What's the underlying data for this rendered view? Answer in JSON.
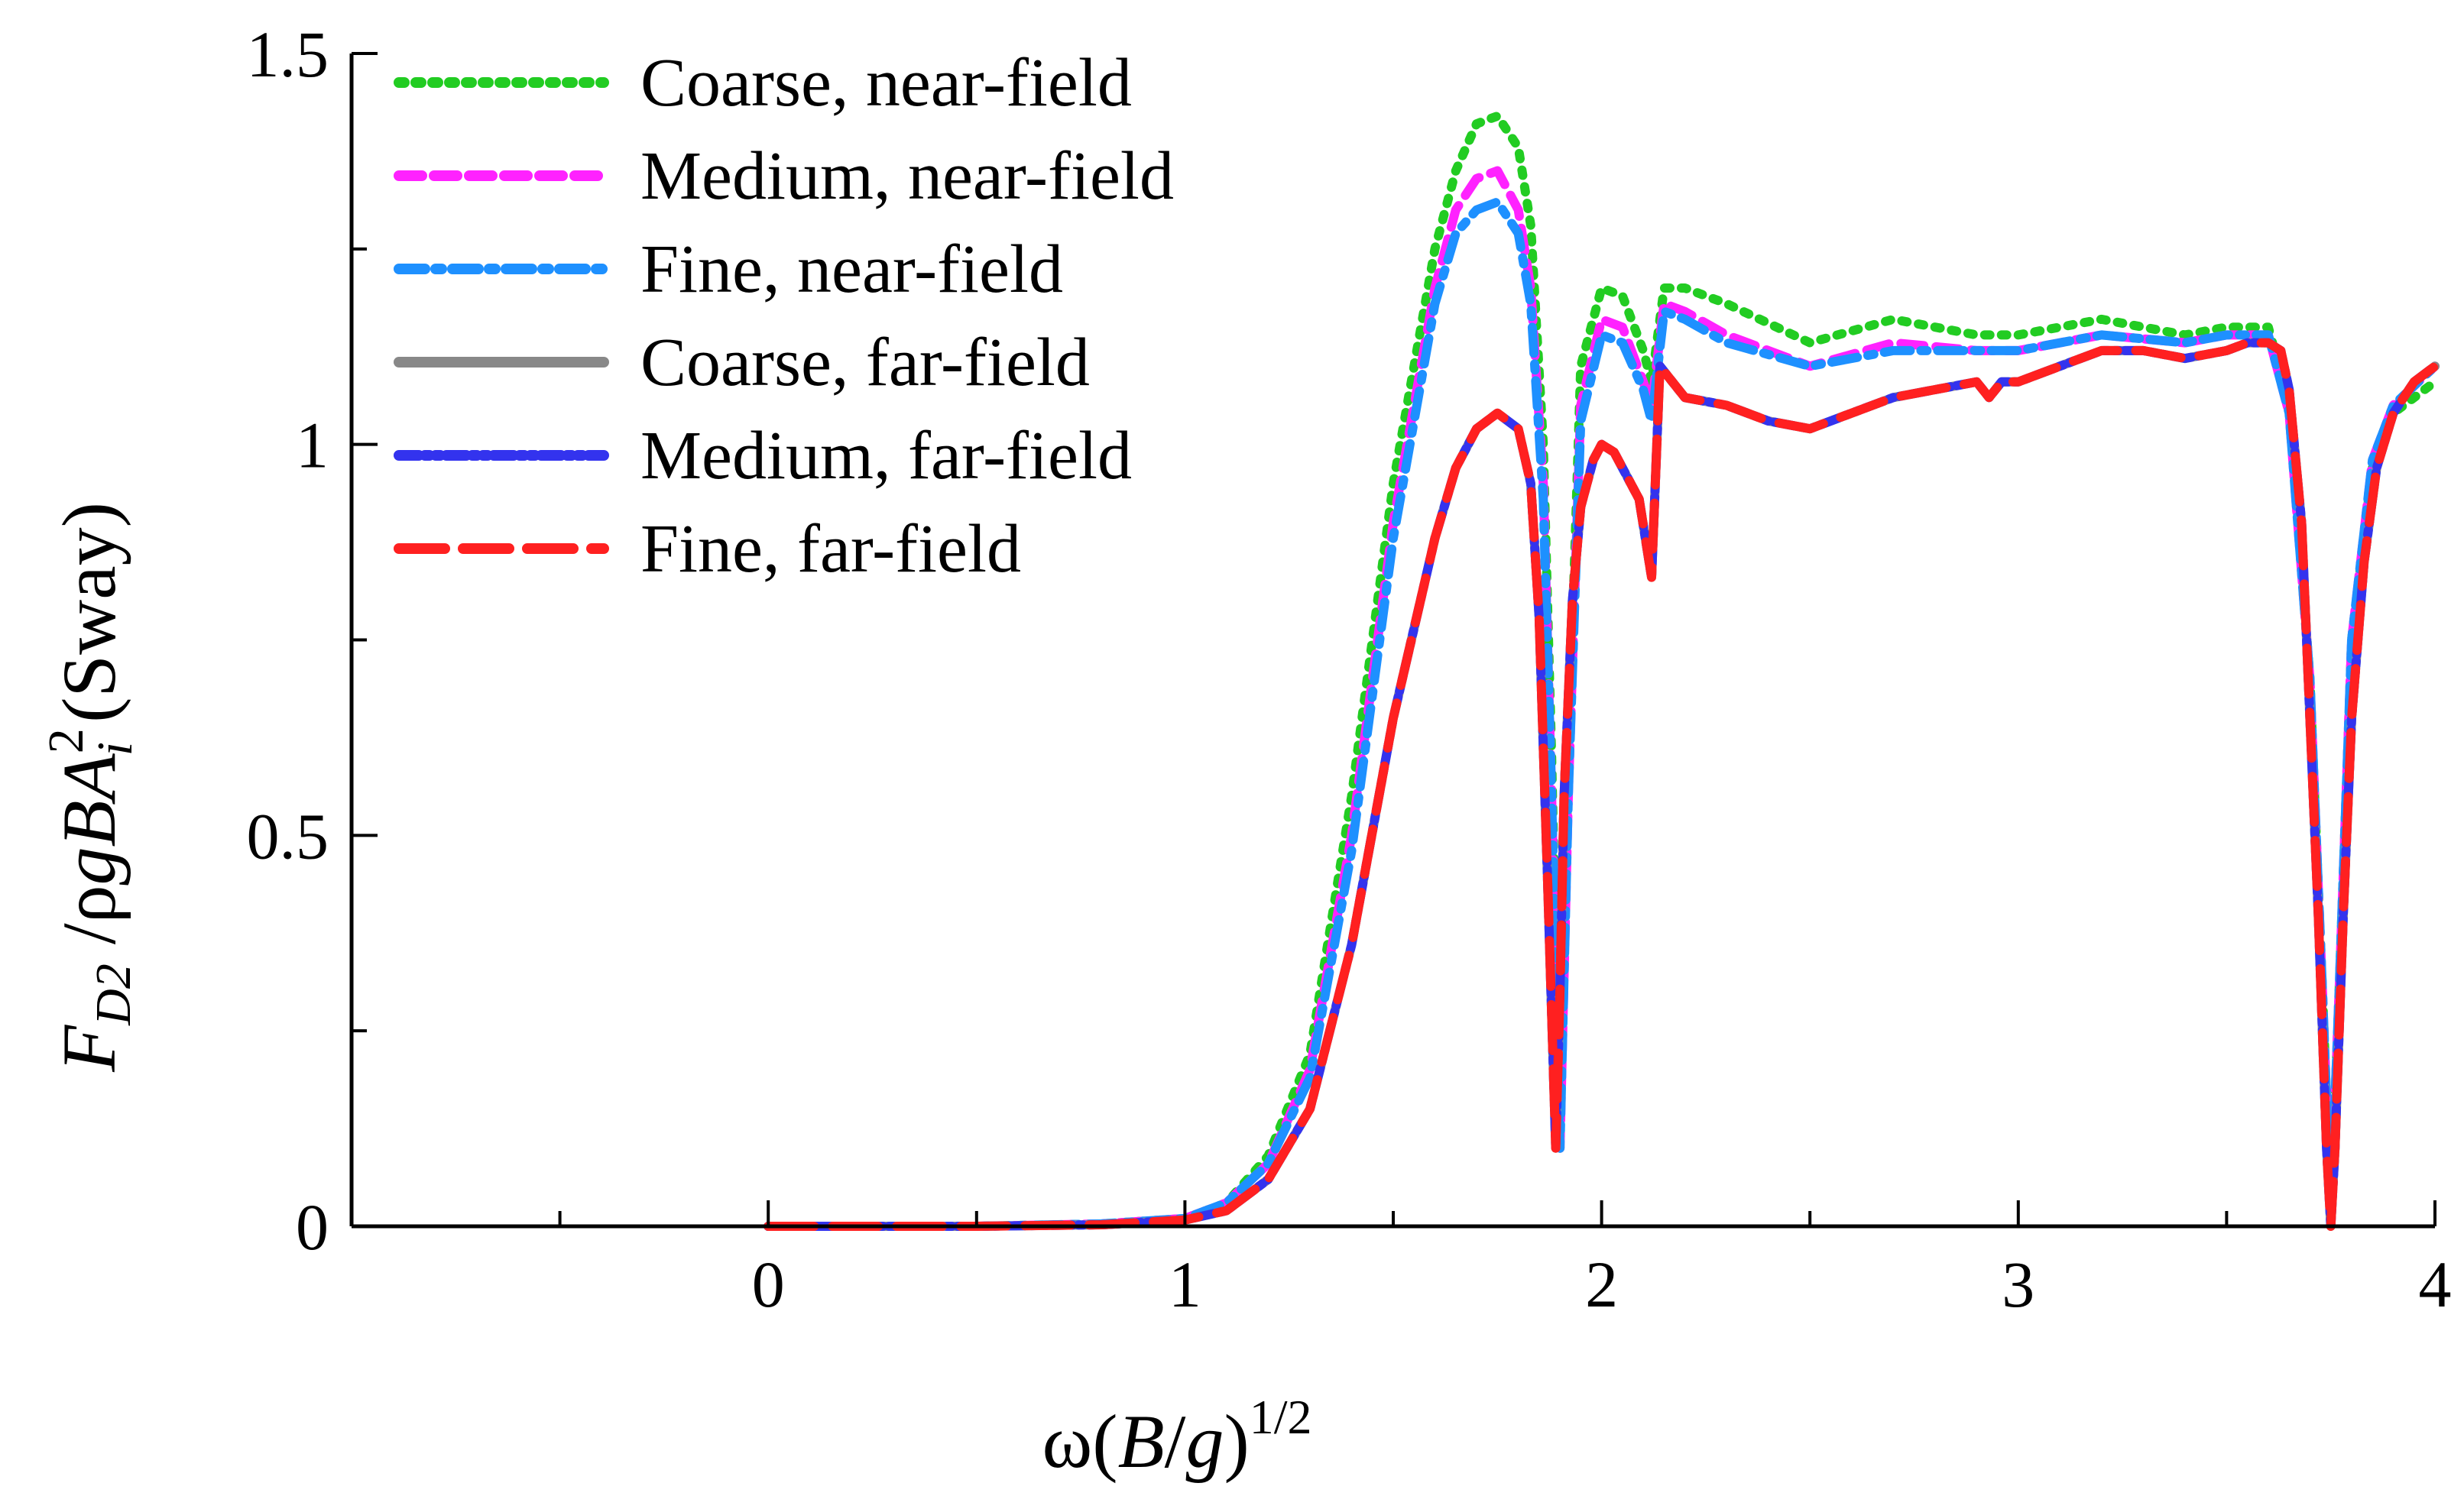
{
  "chart_data": {
    "type": "line",
    "title": "",
    "xlabel": {
      "omega": "ω(",
      "B": "B",
      "slash": "/",
      "g": "g",
      "close": ")",
      "exp": "1/2"
    },
    "ylabel": {
      "F": "F",
      "sub": "D2",
      "rest": " /ρ",
      "g": "g",
      "B": "B",
      "A": "A",
      "sup": "2",
      "subi": "i",
      "sway": " (Sway)"
    },
    "xlim": [
      -1,
      4
    ],
    "ylim": [
      0,
      1.5
    ],
    "xticks": [
      0,
      1,
      2,
      3,
      4
    ],
    "xticklabels": [
      "0",
      "1",
      "2",
      "3",
      "4"
    ],
    "yticks": [
      0,
      0.5,
      1,
      1.5
    ],
    "yticklabels": [
      "0",
      "0.5",
      "1",
      "1.5"
    ],
    "legend_position": "top-left",
    "series": [
      {
        "name": "Coarse, near-field",
        "color": "#22cc22",
        "dash": "dotted",
        "x": [
          0,
          0.5,
          0.8,
          1.0,
          1.1,
          1.2,
          1.3,
          1.4,
          1.5,
          1.6,
          1.65,
          1.7,
          1.75,
          1.8,
          1.83,
          1.86,
          1.88,
          1.9,
          1.92,
          1.95,
          2.0,
          2.05,
          2.1,
          2.12,
          2.15,
          2.2,
          2.3,
          2.5,
          2.7,
          2.9,
          3.0,
          3.2,
          3.4,
          3.5,
          3.6,
          3.65,
          3.7,
          3.73,
          3.75,
          3.77,
          3.8,
          3.85,
          3.9,
          4.0
        ],
        "y": [
          0,
          0,
          0.003,
          0.01,
          0.03,
          0.09,
          0.22,
          0.55,
          0.95,
          1.25,
          1.35,
          1.41,
          1.42,
          1.38,
          1.28,
          1.0,
          0.6,
          0.1,
          0.6,
          1.1,
          1.2,
          1.19,
          1.12,
          1.08,
          1.2,
          1.2,
          1.18,
          1.13,
          1.16,
          1.14,
          1.14,
          1.16,
          1.14,
          1.15,
          1.15,
          1.05,
          0.7,
          0.3,
          0.02,
          0.3,
          0.75,
          0.97,
          1.04,
          1.08
        ]
      },
      {
        "name": "Medium, near-field",
        "color": "#ff22ff",
        "dash": "dashed",
        "x": [
          0,
          0.5,
          0.8,
          1.0,
          1.1,
          1.2,
          1.3,
          1.4,
          1.5,
          1.6,
          1.65,
          1.7,
          1.75,
          1.8,
          1.83,
          1.86,
          1.88,
          1.9,
          1.92,
          1.95,
          2.0,
          2.05,
          2.1,
          2.12,
          2.15,
          2.2,
          2.3,
          2.5,
          2.7,
          2.9,
          3.0,
          3.2,
          3.4,
          3.5,
          3.6,
          3.65,
          3.7,
          3.73,
          3.75,
          3.77,
          3.8,
          3.85,
          3.9,
          4.0
        ],
        "y": [
          0,
          0,
          0.003,
          0.01,
          0.03,
          0.08,
          0.2,
          0.5,
          0.9,
          1.2,
          1.3,
          1.34,
          1.35,
          1.3,
          1.2,
          0.95,
          0.55,
          0.1,
          0.55,
          1.05,
          1.16,
          1.15,
          1.08,
          1.05,
          1.18,
          1.17,
          1.14,
          1.1,
          1.13,
          1.12,
          1.12,
          1.14,
          1.13,
          1.14,
          1.14,
          1.04,
          0.7,
          0.3,
          0.02,
          0.3,
          0.75,
          0.98,
          1.05,
          1.1
        ]
      },
      {
        "name": "Fine, near-field",
        "color": "#1e90ff",
        "dash": "dashdot",
        "x": [
          0,
          0.5,
          0.8,
          1.0,
          1.1,
          1.2,
          1.3,
          1.4,
          1.5,
          1.6,
          1.65,
          1.7,
          1.75,
          1.8,
          1.83,
          1.86,
          1.88,
          1.9,
          1.92,
          1.95,
          2.0,
          2.05,
          2.1,
          2.12,
          2.15,
          2.2,
          2.3,
          2.5,
          2.7,
          2.9,
          3.0,
          3.2,
          3.4,
          3.5,
          3.6,
          3.65,
          3.7,
          3.73,
          3.75,
          3.77,
          3.8,
          3.85,
          3.9,
          4.0
        ],
        "y": [
          0,
          0,
          0.003,
          0.01,
          0.03,
          0.08,
          0.19,
          0.48,
          0.88,
          1.18,
          1.27,
          1.3,
          1.31,
          1.27,
          1.18,
          0.93,
          0.55,
          0.1,
          0.55,
          1.03,
          1.14,
          1.13,
          1.07,
          1.03,
          1.17,
          1.16,
          1.13,
          1.1,
          1.12,
          1.12,
          1.12,
          1.14,
          1.13,
          1.14,
          1.14,
          1.04,
          0.7,
          0.3,
          0.02,
          0.3,
          0.75,
          0.98,
          1.05,
          1.1
        ]
      },
      {
        "name": "Coarse, far-field",
        "color": "#888888",
        "dash": "solid",
        "x": [
          0,
          0.5,
          0.8,
          1.0,
          1.1,
          1.2,
          1.3,
          1.4,
          1.5,
          1.6,
          1.65,
          1.7,
          1.75,
          1.8,
          1.83,
          1.85,
          1.87,
          1.89,
          1.9,
          1.91,
          1.93,
          1.95,
          1.98,
          2.0,
          2.03,
          2.06,
          2.09,
          2.12,
          2.14,
          2.2,
          2.3,
          2.4,
          2.5,
          2.6,
          2.7,
          2.8,
          2.9,
          2.93,
          2.96,
          3.0,
          3.1,
          3.2,
          3.3,
          3.4,
          3.5,
          3.55,
          3.6,
          3.63,
          3.65,
          3.68,
          3.7,
          3.72,
          3.74,
          3.75,
          3.76,
          3.78,
          3.8,
          3.83,
          3.86,
          3.9,
          3.95,
          4.0
        ],
        "y": [
          0,
          0,
          0.002,
          0.008,
          0.02,
          0.06,
          0.15,
          0.36,
          0.65,
          0.88,
          0.97,
          1.02,
          1.04,
          1.02,
          0.95,
          0.78,
          0.45,
          0.1,
          0.3,
          0.55,
          0.8,
          0.92,
          0.98,
          1.0,
          0.99,
          0.96,
          0.93,
          0.83,
          1.1,
          1.06,
          1.05,
          1.03,
          1.02,
          1.04,
          1.06,
          1.07,
          1.08,
          1.06,
          1.08,
          1.08,
          1.1,
          1.12,
          1.12,
          1.11,
          1.12,
          1.13,
          1.13,
          1.12,
          1.07,
          0.9,
          0.65,
          0.4,
          0.1,
          0.0,
          0.1,
          0.4,
          0.65,
          0.85,
          0.97,
          1.04,
          1.08,
          1.1
        ]
      },
      {
        "name": "Medium, far-field",
        "color": "#3333ee",
        "dash": "dashdotdot",
        "x": [
          0,
          0.5,
          0.8,
          1.0,
          1.1,
          1.2,
          1.3,
          1.4,
          1.5,
          1.6,
          1.65,
          1.7,
          1.75,
          1.8,
          1.83,
          1.85,
          1.87,
          1.89,
          1.9,
          1.91,
          1.93,
          1.95,
          1.98,
          2.0,
          2.03,
          2.06,
          2.09,
          2.12,
          2.14,
          2.2,
          2.3,
          2.4,
          2.5,
          2.6,
          2.7,
          2.8,
          2.9,
          2.93,
          2.96,
          3.0,
          3.1,
          3.2,
          3.3,
          3.4,
          3.5,
          3.55,
          3.6,
          3.63,
          3.65,
          3.68,
          3.7,
          3.72,
          3.74,
          3.75,
          3.76,
          3.78,
          3.8,
          3.83,
          3.86,
          3.9,
          3.95,
          4.0
        ],
        "y": [
          0,
          0,
          0.002,
          0.008,
          0.02,
          0.06,
          0.15,
          0.36,
          0.65,
          0.88,
          0.97,
          1.02,
          1.04,
          1.02,
          0.95,
          0.78,
          0.45,
          0.1,
          0.3,
          0.55,
          0.8,
          0.92,
          0.98,
          1.0,
          0.99,
          0.96,
          0.93,
          0.83,
          1.1,
          1.06,
          1.05,
          1.03,
          1.02,
          1.04,
          1.06,
          1.07,
          1.08,
          1.06,
          1.08,
          1.08,
          1.1,
          1.12,
          1.12,
          1.11,
          1.12,
          1.13,
          1.13,
          1.12,
          1.07,
          0.9,
          0.65,
          0.4,
          0.1,
          0.0,
          0.1,
          0.4,
          0.65,
          0.85,
          0.97,
          1.04,
          1.08,
          1.1
        ]
      },
      {
        "name": "Fine, far-field",
        "color": "#ff2020",
        "dash": "longdash",
        "x": [
          0,
          0.5,
          0.8,
          1.0,
          1.1,
          1.2,
          1.3,
          1.4,
          1.5,
          1.6,
          1.65,
          1.7,
          1.75,
          1.8,
          1.83,
          1.85,
          1.87,
          1.89,
          1.9,
          1.91,
          1.93,
          1.95,
          1.98,
          2.0,
          2.03,
          2.06,
          2.09,
          2.12,
          2.14,
          2.2,
          2.3,
          2.4,
          2.5,
          2.6,
          2.7,
          2.8,
          2.9,
          2.93,
          2.96,
          3.0,
          3.1,
          3.2,
          3.3,
          3.4,
          3.5,
          3.55,
          3.6,
          3.63,
          3.65,
          3.68,
          3.7,
          3.72,
          3.74,
          3.75,
          3.76,
          3.78,
          3.8,
          3.83,
          3.86,
          3.9,
          3.95,
          4.0
        ],
        "y": [
          0,
          0,
          0.002,
          0.008,
          0.02,
          0.06,
          0.15,
          0.36,
          0.65,
          0.88,
          0.97,
          1.02,
          1.04,
          1.02,
          0.95,
          0.78,
          0.45,
          0.1,
          0.3,
          0.55,
          0.8,
          0.92,
          0.98,
          1.0,
          0.99,
          0.96,
          0.93,
          0.83,
          1.1,
          1.06,
          1.05,
          1.03,
          1.02,
          1.04,
          1.06,
          1.07,
          1.08,
          1.06,
          1.08,
          1.08,
          1.1,
          1.12,
          1.12,
          1.11,
          1.12,
          1.13,
          1.13,
          1.12,
          1.07,
          0.9,
          0.65,
          0.4,
          0.1,
          0.0,
          0.1,
          0.4,
          0.65,
          0.85,
          0.97,
          1.04,
          1.08,
          1.1
        ]
      }
    ]
  }
}
